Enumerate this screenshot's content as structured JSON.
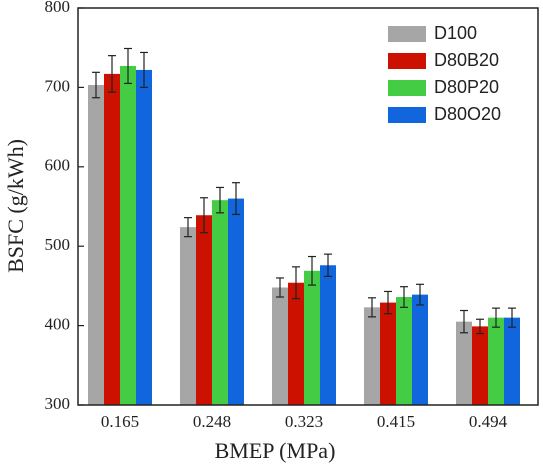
{
  "chart_data": {
    "type": "bar",
    "xlabel": "BMEP (MPa)",
    "ylabel": "BSFC (g/kWh)",
    "categories": [
      "0.165",
      "0.248",
      "0.323",
      "0.415",
      "0.494"
    ],
    "series": [
      {
        "name": "D100",
        "color": "#a6a6a6",
        "values": [
          703,
          524,
          448,
          423,
          405
        ],
        "errors": [
          16,
          12,
          12,
          12,
          14
        ]
      },
      {
        "name": "D80B20",
        "color": "#cc1100",
        "values": [
          717,
          539,
          454,
          429,
          399
        ],
        "errors": [
          23,
          22,
          20,
          14,
          9
        ]
      },
      {
        "name": "D80P20",
        "color": "#44cc44",
        "values": [
          727,
          558,
          469,
          436,
          410
        ],
        "errors": [
          22,
          16,
          18,
          13,
          12
        ]
      },
      {
        "name": "D80O20",
        "color": "#1166dd",
        "values": [
          722,
          560,
          476,
          439,
          410
        ],
        "errors": [
          22,
          20,
          14,
          13,
          12
        ]
      }
    ],
    "ylim": [
      300,
      800
    ],
    "yticks": [
      300,
      400,
      500,
      600,
      700,
      800
    ],
    "legend": "upper right"
  }
}
